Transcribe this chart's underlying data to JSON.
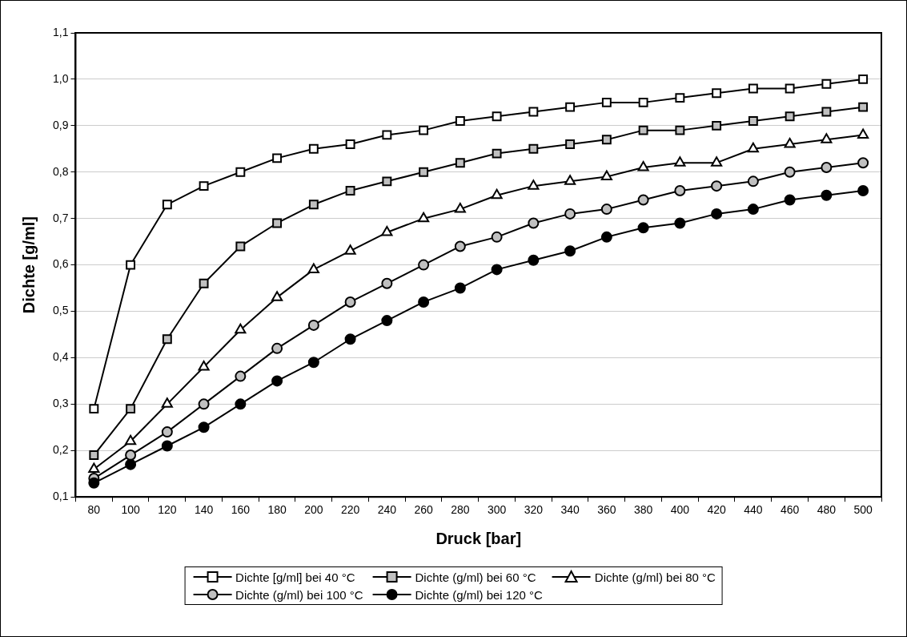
{
  "chart_data": {
    "type": "line",
    "xlabel": "Druck [bar]",
    "ylabel": "Dichte [g/ml]",
    "categories": [
      "80",
      "100",
      "120",
      "140",
      "160",
      "180",
      "200",
      "220",
      "240",
      "260",
      "280",
      "300",
      "320",
      "340",
      "360",
      "380",
      "400",
      "420",
      "440",
      "460",
      "480",
      "500"
    ],
    "ylim": [
      0.1,
      1.1
    ],
    "yticks": [
      {
        "value": 0.1,
        "label": "0,1"
      },
      {
        "value": 0.2,
        "label": "0,2"
      },
      {
        "value": 0.3,
        "label": "0,3"
      },
      {
        "value": 0.4,
        "label": "0,4"
      },
      {
        "value": 0.5,
        "label": "0,5"
      },
      {
        "value": 0.6,
        "label": "0,6"
      },
      {
        "value": 0.7,
        "label": "0,7"
      },
      {
        "value": 0.8,
        "label": "0,8"
      },
      {
        "value": 0.9,
        "label": "0,9"
      },
      {
        "value": 1.0,
        "label": "1,0"
      },
      {
        "value": 1.1,
        "label": "1,1"
      }
    ],
    "grid": "y",
    "legend": "bottom",
    "line_style": "solid",
    "series": [
      {
        "name": "Dichte [g/ml] bei 40 °C",
        "color": "#ffffff",
        "marker": "square",
        "values": [
          0.29,
          0.6,
          0.73,
          0.77,
          0.8,
          0.83,
          0.85,
          0.86,
          0.88,
          0.89,
          0.91,
          0.92,
          0.93,
          0.94,
          0.95,
          0.95,
          0.96,
          0.97,
          0.98,
          0.98,
          0.99,
          1.0
        ]
      },
      {
        "name": "Dichte (g/ml) bei 60 °C",
        "color": "#c0c0c0",
        "marker": "square",
        "values": [
          0.19,
          0.29,
          0.44,
          0.56,
          0.64,
          0.69,
          0.73,
          0.76,
          0.78,
          0.8,
          0.82,
          0.84,
          0.85,
          0.86,
          0.87,
          0.89,
          0.89,
          0.9,
          0.91,
          0.92,
          0.93,
          0.94
        ]
      },
      {
        "name": "Dichte (g/ml) bei 80 °C",
        "color": "#ffffff",
        "marker": "triangle",
        "values": [
          0.16,
          0.22,
          0.3,
          0.38,
          0.46,
          0.53,
          0.59,
          0.63,
          0.67,
          0.7,
          0.72,
          0.75,
          0.77,
          0.78,
          0.79,
          0.81,
          0.82,
          0.82,
          0.85,
          0.86,
          0.87,
          0.88
        ]
      },
      {
        "name": "Dichte (g/ml) bei 100 °C",
        "color": "#c0c0c0",
        "marker": "circle",
        "values": [
          0.14,
          0.19,
          0.24,
          0.3,
          0.36,
          0.42,
          0.47,
          0.52,
          0.56,
          0.6,
          0.64,
          0.66,
          0.69,
          0.71,
          0.72,
          0.74,
          0.76,
          0.77,
          0.78,
          0.8,
          0.81,
          0.82
        ]
      },
      {
        "name": "Dichte (g/ml) bei 120 °C",
        "color": "#000000",
        "marker": "circle",
        "values": [
          0.13,
          0.17,
          0.21,
          0.25,
          0.3,
          0.35,
          0.39,
          0.44,
          0.48,
          0.52,
          0.55,
          0.59,
          0.61,
          0.63,
          0.66,
          0.68,
          0.69,
          0.71,
          0.72,
          0.74,
          0.75,
          0.76
        ]
      }
    ]
  }
}
